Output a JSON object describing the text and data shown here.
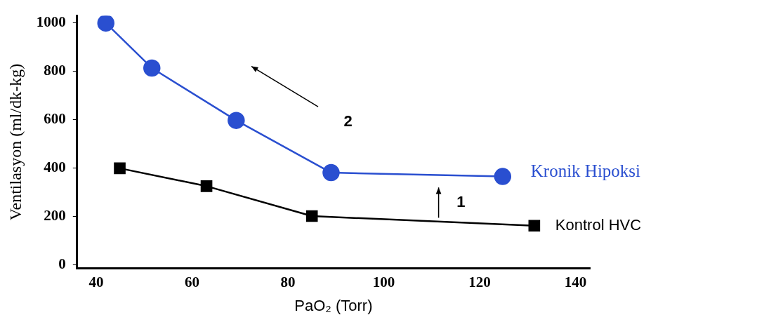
{
  "chart_data": {
    "type": "line",
    "xlabel": "PaO₂ (Torr)",
    "ylabel": "Ventilasyon (ml/dk-kg)",
    "xlim": [
      36,
      143
    ],
    "xticks": [
      40,
      60,
      80,
      100,
      120,
      140
    ],
    "ylim": [
      -15,
      1030
    ],
    "yticks": [
      0,
      200,
      400,
      600,
      800,
      1000
    ],
    "grid": false,
    "legend": false,
    "line_style": "solid",
    "series": [
      {
        "name": "Kronik Hipoksi",
        "color": "#2a4fd0",
        "marker": "circle",
        "x": [
          42,
          51.6,
          69.2,
          89,
          124.8
        ],
        "values": [
          1000,
          814,
          597,
          381,
          365
        ]
      },
      {
        "name": "Kontrol HVC",
        "color": "#000000",
        "marker": "square",
        "x": [
          44.9,
          63,
          85,
          131.4
        ],
        "values": [
          399,
          325,
          201,
          161
        ]
      }
    ],
    "annotations": [
      "2",
      "1"
    ]
  }
}
